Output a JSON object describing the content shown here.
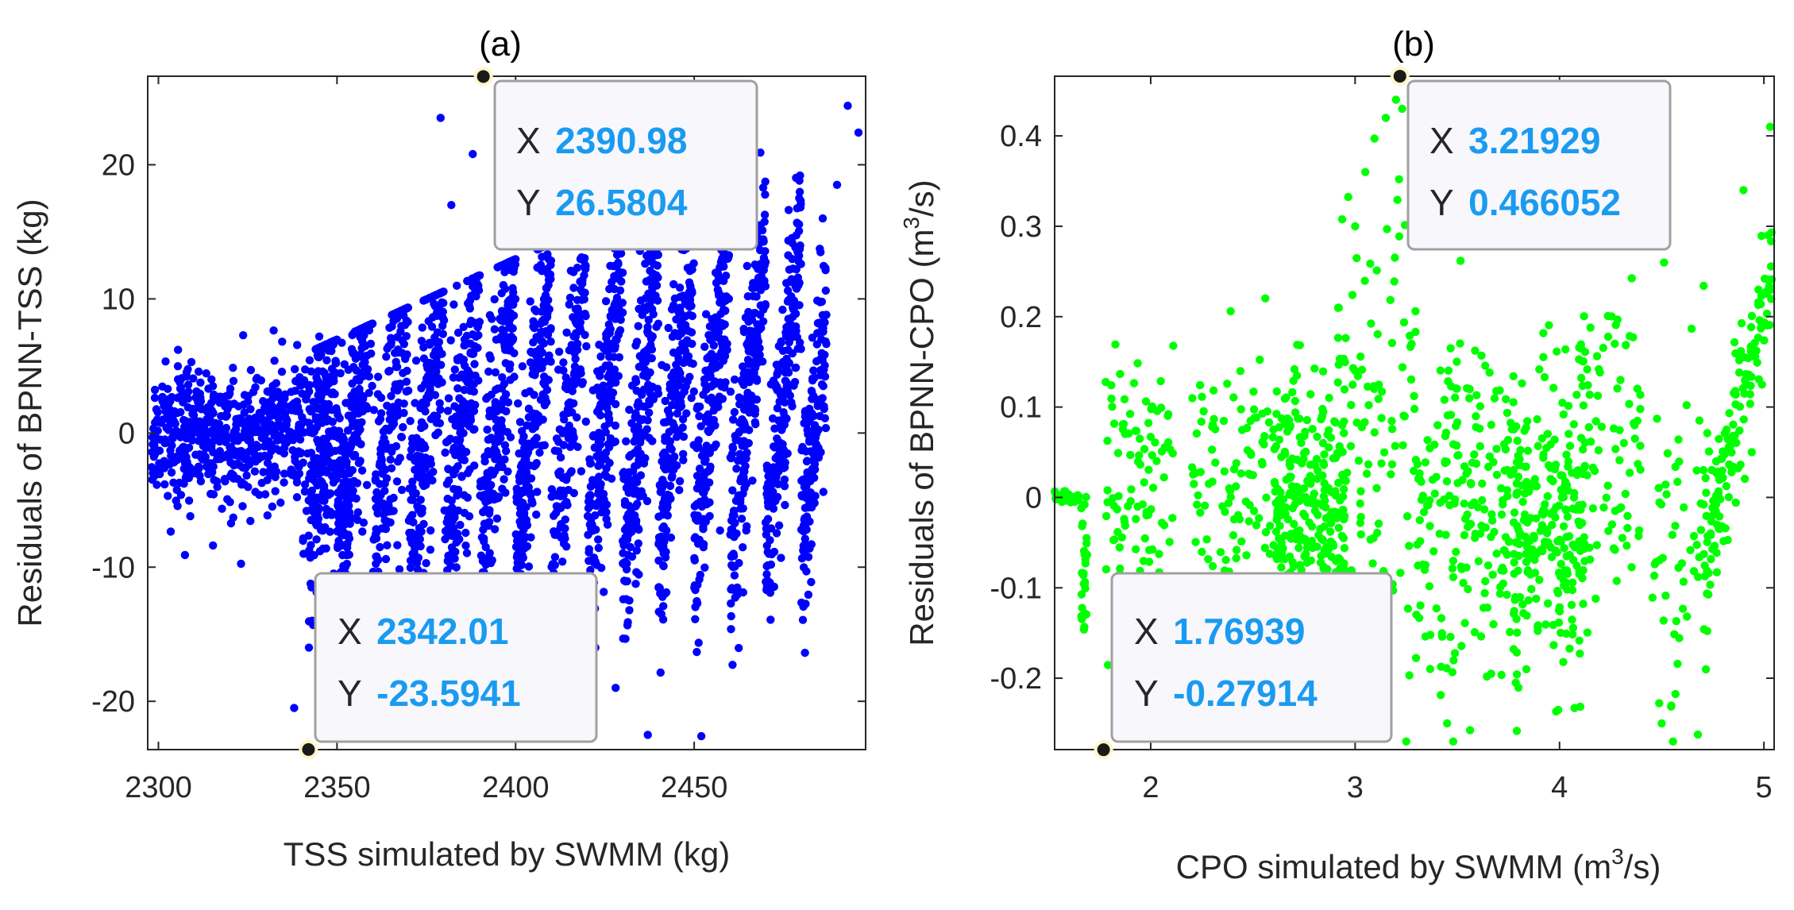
{
  "colors": {
    "accent": "#1a9bf0",
    "axis": "#262626",
    "tip_bg": "#f7f7fc",
    "tip_border": "#a0a0a0",
    "marker_ring": "#fff6c8"
  },
  "chart_data": [
    {
      "type": "scatter",
      "panel_label": "(a)",
      "title": "(a)",
      "xlabel": "TSS simulated by SWMM (kg)",
      "ylabel": "Residuals of BPNN-TSS (kg)",
      "xlim": [
        2297,
        2498
      ],
      "ylim": [
        -23.6,
        26.6
      ],
      "xticks": [
        2300,
        2350,
        2400,
        2450
      ],
      "yticks": [
        -20,
        -10,
        0,
        10,
        20
      ],
      "point_color": "#0000ff",
      "series": [
        {
          "name": "residuals",
          "point_count": 4000,
          "description": "dense diagonal streaks of points, residual range approx -23 to 26 kg"
        }
      ],
      "datatips": [
        {
          "x_label": "X",
          "x_value": "2390.98",
          "y_label": "Y",
          "y_value": "26.5804",
          "x": 2390.98,
          "y": 26.5804
        },
        {
          "x_label": "X",
          "x_value": "2342.01",
          "y_label": "Y",
          "y_value": "-23.5941",
          "x": 2342.01,
          "y": -23.5941
        }
      ]
    },
    {
      "type": "scatter",
      "panel_label": "(b)",
      "title": "(b)",
      "xlabel_main": "CPO simulated by SWMM (m",
      "xlabel_sup": "3",
      "xlabel_tail": "/s)",
      "ylabel_main": "Residuals of BPNN-CPO (m",
      "ylabel_sup": "3",
      "ylabel_tail": "/s)",
      "xlim": [
        1.53,
        5.05
      ],
      "ylim": [
        -0.279,
        0.466
      ],
      "xticks": [
        2,
        3,
        4,
        5
      ],
      "yticks": [
        -0.2,
        -0.1,
        0,
        0.1,
        0.2,
        0.3,
        0.4
      ],
      "point_color": "#00ff00",
      "series": [
        {
          "name": "residuals",
          "point_count": 1400,
          "description": "scattered clusters of points, residual range approx -0.28 to 0.47 m3/s"
        }
      ],
      "datatips": [
        {
          "x_label": "X",
          "x_value": "3.21929",
          "y_label": "Y",
          "y_value": "0.466052",
          "x": 3.21929,
          "y": 0.466052
        },
        {
          "x_label": "X",
          "x_value": "1.76939",
          "y_label": "Y",
          "y_value": "-0.27914",
          "x": 1.76939,
          "y": -0.27914
        }
      ]
    }
  ]
}
